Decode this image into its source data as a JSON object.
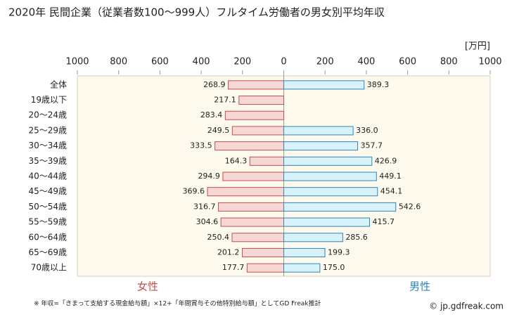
{
  "chart_data": {
    "type": "butterfly",
    "title": "2020年 民間企業（従業者数100〜999人）フルタイム労働者の男女別平均年収",
    "unit_label": "[万円]",
    "categories": [
      "全体",
      "19歳以下",
      "20〜24歳",
      "25〜29歳",
      "30〜34歳",
      "35〜39歳",
      "40〜44歳",
      "45〜49歳",
      "50〜54歳",
      "55〜59歳",
      "60〜64歳",
      "65〜69歳",
      "70歳以上"
    ],
    "series": [
      {
        "name": "女性",
        "side": "left",
        "color": "#f7d7d6",
        "edge_color": "#c0504d",
        "text_color": "#c0504d",
        "values": [
          268.9,
          217.1,
          283.4,
          249.5,
          333.5,
          164.3,
          294.9,
          369.6,
          316.7,
          304.6,
          250.4,
          201.2,
          177.7
        ]
      },
      {
        "name": "男性",
        "side": "right",
        "color": "#d8f2fb",
        "edge_color": "#2f86b8",
        "text_color": "#2f86b8",
        "values": [
          389.3,
          null,
          null,
          336.0,
          357.7,
          426.9,
          449.1,
          454.1,
          542.6,
          415.7,
          285.6,
          199.3,
          175.0
        ],
        "value_labels": [
          "389.3",
          null,
          null,
          "336.0",
          "357.7",
          "426.9",
          "449.1",
          "454.1",
          "542.6",
          "415.7",
          "285.6",
          "199.3",
          "175.0"
        ]
      }
    ],
    "xlim": [
      0,
      1000
    ],
    "xticks": [
      0,
      200,
      400,
      600,
      800,
      1000
    ],
    "note": "※ 年収=「きまって支給する現金給与額」×12+「年間賞与その他特別給与額」としてGD Freak推計",
    "credit": "© jp.gdfreak.com"
  }
}
